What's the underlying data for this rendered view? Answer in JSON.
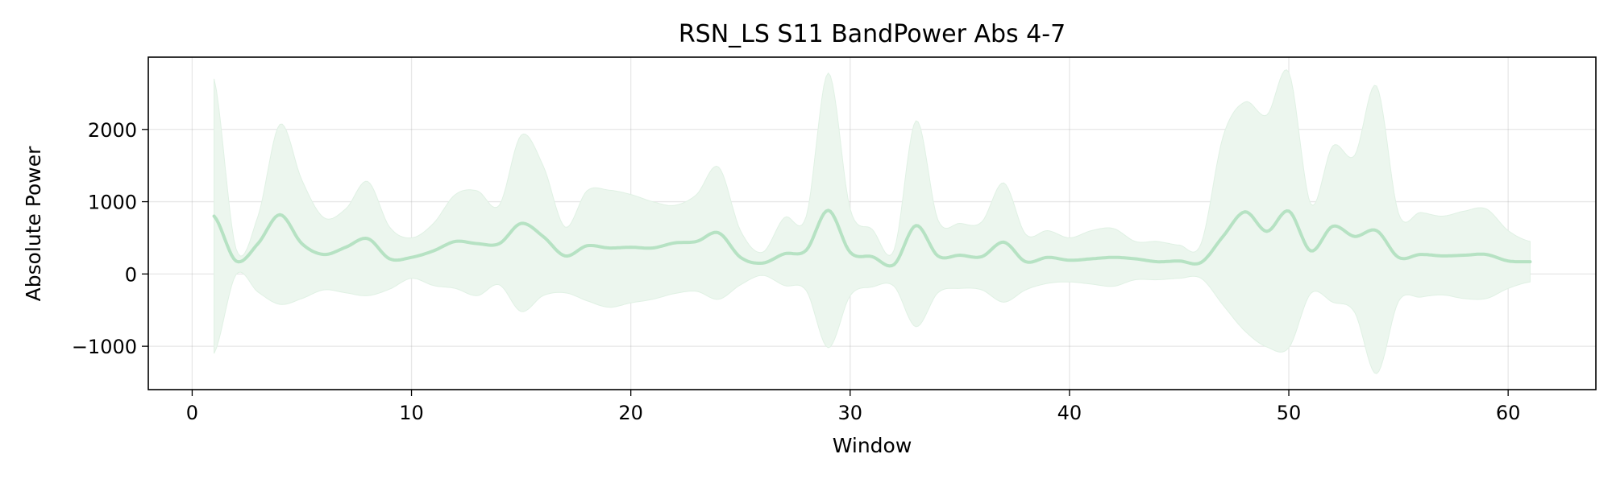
{
  "chart_data": {
    "type": "line",
    "title": "RSN_LS S11 BandPower Abs 4-7",
    "xlabel": "Window",
    "ylabel": "Absolute Power",
    "xlim": [
      -2,
      64
    ],
    "ylim": [
      -1600,
      3000
    ],
    "xticks": [
      0,
      10,
      20,
      30,
      40,
      50,
      60
    ],
    "yticks": [
      -1000,
      0,
      1000,
      2000
    ],
    "ytick_labels": [
      "−1000",
      "0",
      "1000",
      "2000"
    ],
    "grid": true,
    "legend": "none",
    "colors": {
      "line": "#b6e2c3",
      "band": "#ecf6ee",
      "band_edge": "#e0f1e4"
    },
    "series": [
      {
        "x": [
          1,
          2,
          3,
          4,
          5,
          6,
          7,
          8,
          9,
          10,
          11,
          12,
          13,
          14,
          15,
          16,
          17,
          18,
          19,
          20,
          21,
          22,
          23,
          24,
          25,
          26,
          27,
          28,
          29,
          30,
          31,
          32,
          33,
          34,
          35,
          36,
          37,
          38,
          39,
          40,
          41,
          42,
          43,
          44,
          45,
          46,
          47,
          48,
          49,
          50,
          51,
          52,
          53,
          54,
          55,
          56,
          57,
          58,
          59,
          60,
          61
        ],
        "mean": [
          800,
          180,
          420,
          820,
          420,
          270,
          370,
          490,
          210,
          230,
          320,
          450,
          420,
          420,
          700,
          520,
          250,
          390,
          360,
          370,
          360,
          430,
          450,
          570,
          230,
          150,
          280,
          330,
          880,
          300,
          240,
          130,
          670,
          250,
          260,
          240,
          440,
          170,
          230,
          190,
          210,
          230,
          210,
          170,
          180,
          160,
          520,
          860,
          590,
          870,
          320,
          660,
          520,
          600,
          230,
          270,
          250,
          260,
          270,
          180,
          170
        ],
        "upper": [
          2700,
          350,
          800,
          2070,
          1300,
          780,
          900,
          1280,
          650,
          500,
          700,
          1100,
          1150,
          950,
          1920,
          1500,
          650,
          1150,
          1160,
          1100,
          1000,
          950,
          1100,
          1480,
          600,
          300,
          780,
          800,
          2780,
          900,
          620,
          330,
          2120,
          750,
          700,
          720,
          1260,
          550,
          600,
          500,
          600,
          630,
          450,
          450,
          400,
          420,
          1900,
          2380,
          2200,
          2790,
          970,
          1770,
          1640,
          2600,
          840,
          850,
          800,
          870,
          900,
          600,
          450
        ],
        "lower": [
          -1100,
          -10,
          -250,
          -420,
          -340,
          -220,
          -260,
          -300,
          -210,
          -60,
          -160,
          -200,
          -300,
          -150,
          -520,
          -300,
          -260,
          -370,
          -460,
          -400,
          -350,
          -270,
          -240,
          -350,
          -150,
          -20,
          -160,
          -230,
          -1020,
          -300,
          -180,
          -170,
          -730,
          -260,
          -200,
          -220,
          -390,
          -220,
          -130,
          -110,
          -140,
          -170,
          -80,
          -80,
          -60,
          -60,
          -430,
          -790,
          -1010,
          -1020,
          -270,
          -390,
          -530,
          -1380,
          -380,
          -320,
          -290,
          -340,
          -340,
          -200,
          -110
        ]
      }
    ]
  }
}
